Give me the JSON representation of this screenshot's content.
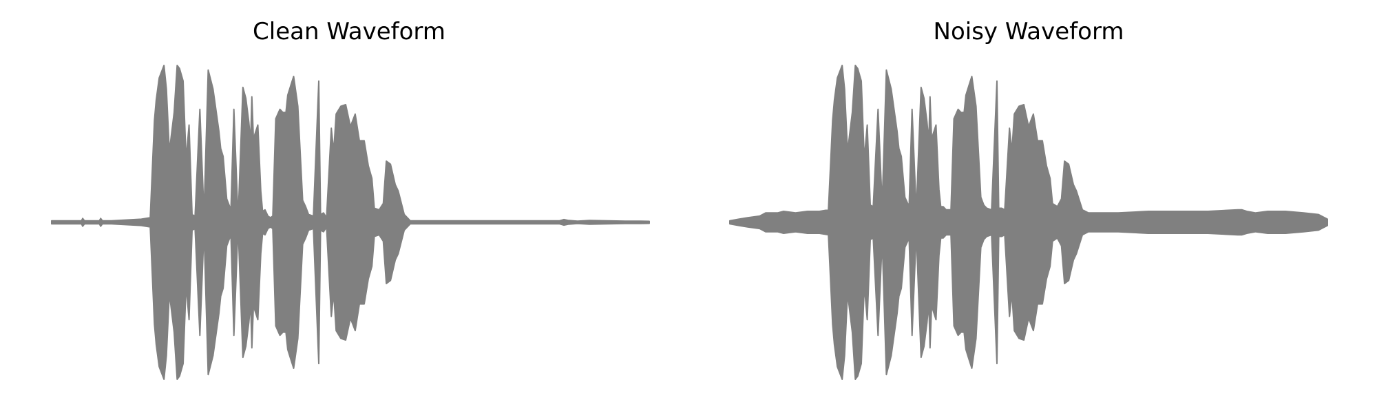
{
  "figure": {
    "background": "#ffffff",
    "waveform_color": "#808080"
  },
  "chart_data": [
    {
      "type": "area",
      "title": "Clean Waveform",
      "xlabel": "",
      "ylabel": "",
      "axes": "off",
      "grid": false,
      "legend": "none",
      "xlim": [
        0,
        1
      ],
      "ylim": [
        -1,
        1
      ],
      "x": [
        0.0,
        0.015,
        0.03,
        0.05,
        0.052,
        0.055,
        0.08,
        0.082,
        0.085,
        0.1,
        0.15,
        0.165,
        0.172,
        0.175,
        0.18,
        0.188,
        0.192,
        0.197,
        0.205,
        0.21,
        0.214,
        0.22,
        0.225,
        0.23,
        0.235,
        0.24,
        0.248,
        0.255,
        0.262,
        0.27,
        0.28,
        0.283,
        0.287,
        0.293,
        0.3,
        0.305,
        0.312,
        0.32,
        0.325,
        0.33,
        0.333,
        0.335,
        0.338,
        0.34,
        0.345,
        0.35,
        0.353,
        0.357,
        0.362,
        0.366,
        0.37,
        0.375,
        0.382,
        0.387,
        0.392,
        0.395,
        0.4,
        0.405,
        0.412,
        0.42,
        0.425,
        0.43,
        0.438,
        0.447,
        0.45,
        0.455,
        0.46,
        0.468,
        0.472,
        0.476,
        0.484,
        0.492,
        0.5,
        0.508,
        0.515,
        0.523,
        0.53,
        0.536,
        0.54,
        0.548,
        0.555,
        0.56,
        0.567,
        0.575,
        0.58,
        0.59,
        0.6,
        0.65,
        0.7,
        0.75,
        0.8,
        0.85,
        0.857,
        0.865,
        0.88,
        0.9,
        0.93,
        0.96,
        0.985,
        1.0
      ],
      "amplitude": [
        0.01,
        0.01,
        0.01,
        0.01,
        0.025,
        0.01,
        0.01,
        0.025,
        0.01,
        0.01,
        0.02,
        0.03,
        0.65,
        0.78,
        0.92,
        1.0,
        0.85,
        0.45,
        0.7,
        1.0,
        0.98,
        0.9,
        0.4,
        0.62,
        0.05,
        0.04,
        0.72,
        0.05,
        0.97,
        0.85,
        0.58,
        0.47,
        0.42,
        0.15,
        0.08,
        0.72,
        0.02,
        0.86,
        0.79,
        0.64,
        0.51,
        0.8,
        0.5,
        0.56,
        0.62,
        0.2,
        0.07,
        0.08,
        0.04,
        0.03,
        0.04,
        0.66,
        0.72,
        0.7,
        0.7,
        0.81,
        0.87,
        0.93,
        0.74,
        0.14,
        0.1,
        0.05,
        0.04,
        0.9,
        0.05,
        0.06,
        0.03,
        0.6,
        0.45,
        0.69,
        0.74,
        0.75,
        0.61,
        0.69,
        0.52,
        0.52,
        0.36,
        0.28,
        0.09,
        0.08,
        0.12,
        0.39,
        0.37,
        0.24,
        0.2,
        0.05,
        0.01,
        0.01,
        0.01,
        0.01,
        0.01,
        0.01,
        0.018,
        0.012,
        0.008,
        0.012,
        0.01,
        0.008,
        0.008,
        0.006
      ]
    },
    {
      "type": "area",
      "title": "Noisy Waveform",
      "xlabel": "",
      "ylabel": "",
      "axes": "off",
      "grid": false,
      "legend": "none",
      "xlim": [
        0,
        1
      ],
      "ylim": [
        -1,
        1
      ],
      "x": [
        0.0,
        0.015,
        0.03,
        0.05,
        0.06,
        0.08,
        0.09,
        0.11,
        0.13,
        0.15,
        0.165,
        0.172,
        0.175,
        0.18,
        0.188,
        0.192,
        0.197,
        0.205,
        0.21,
        0.214,
        0.22,
        0.225,
        0.23,
        0.235,
        0.24,
        0.248,
        0.255,
        0.262,
        0.27,
        0.28,
        0.283,
        0.287,
        0.293,
        0.3,
        0.305,
        0.312,
        0.32,
        0.325,
        0.33,
        0.333,
        0.335,
        0.338,
        0.34,
        0.345,
        0.35,
        0.353,
        0.357,
        0.362,
        0.366,
        0.37,
        0.375,
        0.382,
        0.387,
        0.392,
        0.395,
        0.4,
        0.405,
        0.412,
        0.42,
        0.425,
        0.43,
        0.438,
        0.447,
        0.45,
        0.455,
        0.46,
        0.468,
        0.472,
        0.476,
        0.484,
        0.492,
        0.5,
        0.508,
        0.515,
        0.523,
        0.53,
        0.536,
        0.54,
        0.548,
        0.555,
        0.56,
        0.567,
        0.575,
        0.58,
        0.59,
        0.6,
        0.65,
        0.7,
        0.75,
        0.8,
        0.85,
        0.857,
        0.865,
        0.88,
        0.9,
        0.93,
        0.96,
        0.985,
        1.0
      ],
      "amplitude": [
        0.01,
        0.02,
        0.03,
        0.04,
        0.06,
        0.06,
        0.07,
        0.06,
        0.07,
        0.07,
        0.08,
        0.65,
        0.78,
        0.92,
        1.0,
        0.85,
        0.45,
        0.7,
        1.0,
        0.98,
        0.9,
        0.4,
        0.62,
        0.11,
        0.1,
        0.72,
        0.11,
        0.97,
        0.85,
        0.58,
        0.47,
        0.42,
        0.16,
        0.1,
        0.72,
        0.07,
        0.86,
        0.79,
        0.64,
        0.51,
        0.8,
        0.5,
        0.56,
        0.62,
        0.21,
        0.1,
        0.1,
        0.08,
        0.08,
        0.08,
        0.66,
        0.72,
        0.7,
        0.7,
        0.81,
        0.87,
        0.93,
        0.74,
        0.16,
        0.11,
        0.09,
        0.08,
        0.9,
        0.09,
        0.09,
        0.08,
        0.6,
        0.45,
        0.69,
        0.74,
        0.75,
        0.61,
        0.69,
        0.52,
        0.52,
        0.36,
        0.28,
        0.12,
        0.1,
        0.15,
        0.39,
        0.37,
        0.24,
        0.2,
        0.08,
        0.06,
        0.06,
        0.07,
        0.07,
        0.07,
        0.08,
        0.08,
        0.07,
        0.06,
        0.07,
        0.07,
        0.06,
        0.05,
        0.02
      ]
    }
  ]
}
